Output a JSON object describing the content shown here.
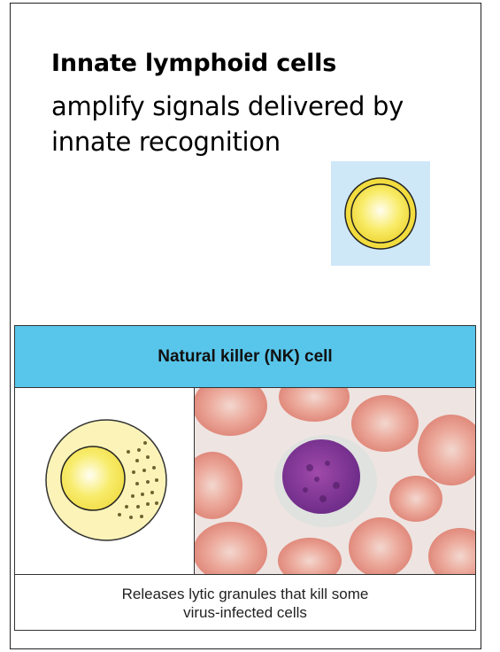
{
  "slide": {
    "title": "Innate lymphoid cells",
    "subtitle": "amplify signals delivered by innate recognition"
  },
  "panel": {
    "header_label": "Natural killer (NK) cell",
    "caption": "Releases lytic granules that kill some\nvirus-infected cells"
  },
  "colors": {
    "header_bg": "#58c5ea",
    "small_cell_bg": "#cfe8f8",
    "cell_fill": "#f7e95a",
    "cell_outer": "#fbf3b8",
    "nucleus": "#7b2f8e",
    "rbc": "#e8968a"
  },
  "icons": {
    "small_cell": "lymphocyte-icon",
    "nk_diagram": "nk-cell-granules-icon",
    "micrograph": "nk-cell-micrograph"
  }
}
